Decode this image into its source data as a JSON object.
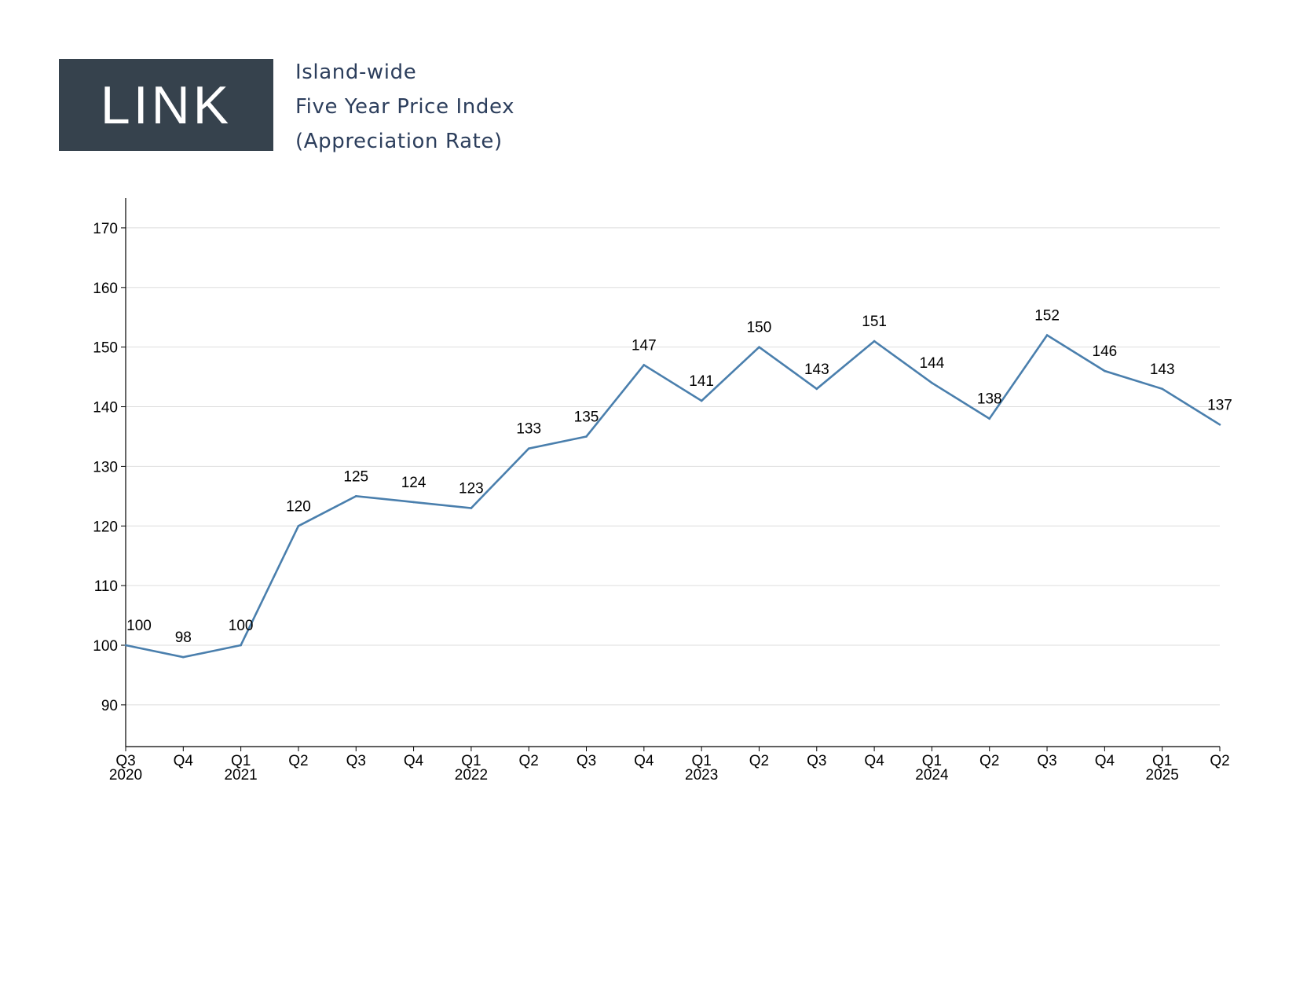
{
  "header": {
    "logo_text": "LINK",
    "title_lines": [
      "Island-wide",
      "Five Year Price Index",
      "(Appreciation Rate)"
    ]
  },
  "colors": {
    "line": "#4a7fad",
    "logo_bg": "#36424d",
    "title": "#2c3e5c",
    "grid": "#dddddd"
  },
  "chart_data": {
    "type": "line",
    "title": "",
    "xlabel": "",
    "ylabel": "",
    "categories": [
      "Q3",
      "Q4",
      "Q1",
      "Q2",
      "Q3",
      "Q4",
      "Q1",
      "Q2",
      "Q3",
      "Q4",
      "Q1",
      "Q2",
      "Q3",
      "Q4",
      "Q1",
      "Q2",
      "Q3",
      "Q4",
      "Q1",
      "Q2"
    ],
    "years": [
      "2020",
      "",
      "2021",
      "",
      "",
      "",
      "2022",
      "",
      "",
      "",
      "2023",
      "",
      "",
      "",
      "2024",
      "",
      "",
      "",
      "2025",
      ""
    ],
    "values": [
      100,
      98,
      100,
      120,
      125,
      124,
      123,
      133,
      135,
      147,
      141,
      150,
      143,
      151,
      144,
      138,
      152,
      146,
      143,
      137
    ],
    "ylim": [
      83,
      175
    ],
    "yticks": [
      90,
      100,
      110,
      120,
      130,
      140,
      150,
      160,
      170
    ],
    "grid": true,
    "legend": "none",
    "data_labels": true
  }
}
